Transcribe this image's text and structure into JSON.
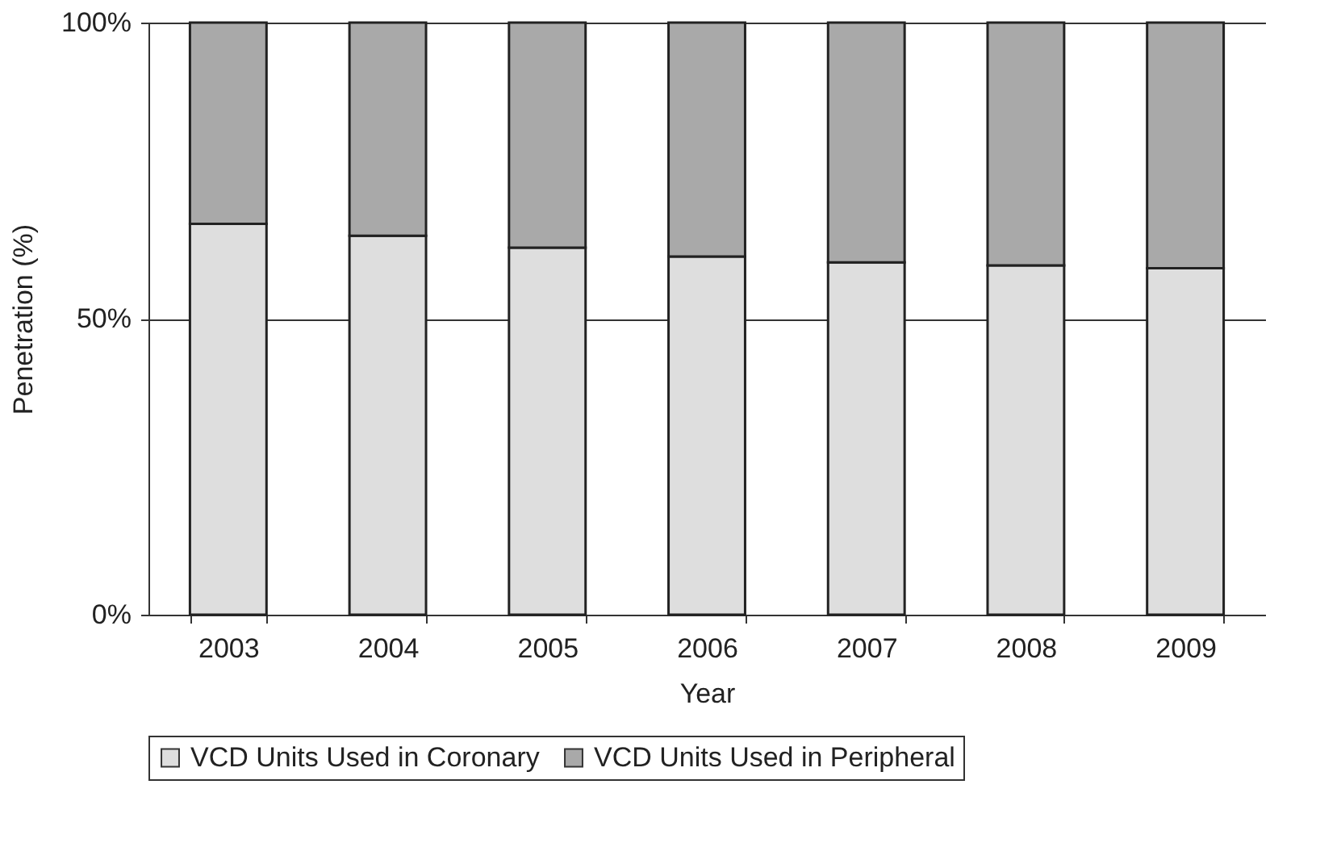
{
  "chart_data": {
    "type": "bar",
    "stacked": true,
    "xlabel": "Year",
    "ylabel": "Penetration (%)",
    "categories": [
      "2003",
      "2004",
      "2005",
      "2006",
      "2007",
      "2008",
      "2009"
    ],
    "series": [
      {
        "name": "VCD Units Used in Coronary",
        "color": "#dedede",
        "values": [
          66,
          64,
          62,
          60.5,
          59.5,
          59,
          58.5
        ]
      },
      {
        "name": "VCD Units Used in Peripheral",
        "color": "#a9a9a9",
        "values": [
          34,
          36,
          38,
          39.5,
          40.5,
          41,
          41.5
        ]
      }
    ],
    "ylim": [
      0,
      100
    ],
    "yticks": [
      {
        "value": 0,
        "label": "0%"
      },
      {
        "value": 50,
        "label": "50%"
      },
      {
        "value": 100,
        "label": "100%"
      }
    ],
    "grid": "y",
    "legend": "bottom"
  }
}
